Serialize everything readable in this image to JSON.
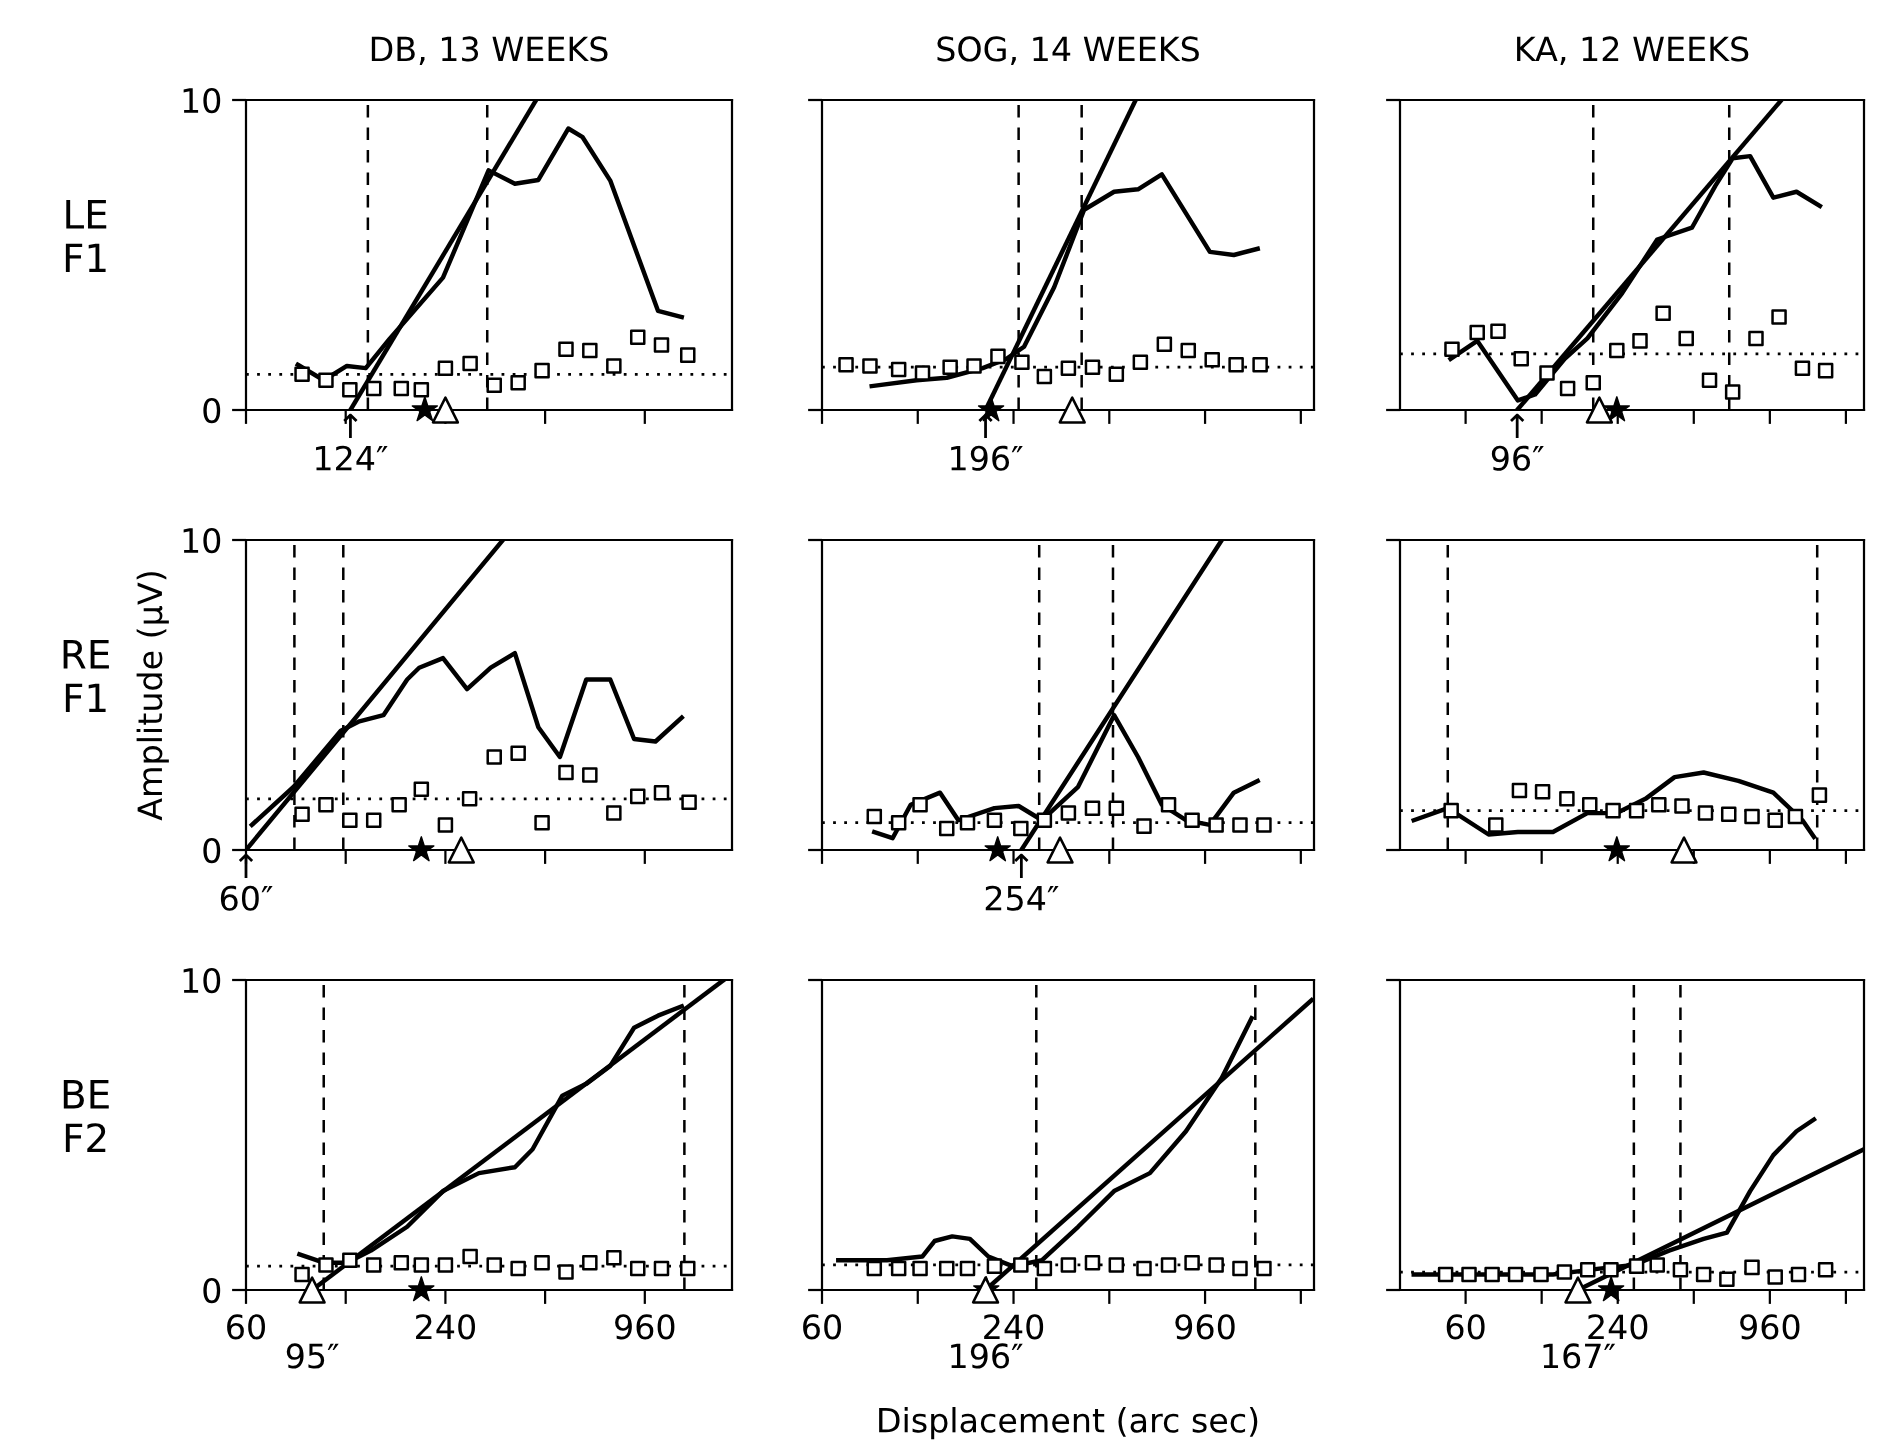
{
  "chart_data": [
    {
      "type": "line",
      "title": "DB, 13 WEEKS",
      "log": "x",
      "xlim": [
        60,
        1760
      ],
      "ylim": [
        0,
        10
      ],
      "yticks": [
        0,
        10
      ],
      "tick_labels": "y",
      "xticks": [
        60,
        {
          "value": 120,
          "label": null
        },
        240,
        {
          "value": 480,
          "label": null
        },
        960
      ],
      "annotations": [
        "LE\nF1",
        {
          "text": "↑\n124″",
          "x": 124,
          "y": 0
        }
      ],
      "ref_lines": [
        {
          "axis": "y",
          "value": 1.15,
          "line_style": "dotted"
        },
        {
          "axis": "x",
          "value": 140,
          "line_style": "dashed"
        },
        {
          "axis": "x",
          "value": 321,
          "line_style": "dashed"
        }
      ],
      "series": [
        {
          "color": "#000000",
          "x": [
            86,
            103,
            121,
            138,
            163,
            236,
            324,
            389,
            458,
            564,
            623,
            755,
            1052,
            1241
          ],
          "values": [
            1.46,
            0.96,
            1.42,
            1.35,
            2.3,
            4.27,
            7.73,
            7.3,
            7.42,
            9.08,
            8.8,
            7.4,
            3.2,
            3.0
          ]
        },
        {
          "type": "scatter",
          "marker": "square",
          "color": "#000000",
          "x": [
            88.6,
            104.6,
            123.5,
            145.8,
            176.6,
            203,
            240,
            285,
            337,
            398,
            470,
            555,
            655,
            774,
            914,
            1078,
            1294
          ],
          "values": [
            1.15,
            0.96,
            0.65,
            0.69,
            0.69,
            0.65,
            1.35,
            1.5,
            0.8,
            0.88,
            1.27,
            1.96,
            1.92,
            1.42,
            2.35,
            2.1,
            1.77
          ]
        },
        {
          "color": "#000000",
          "x": [
            124,
            451
          ],
          "values": [
            0,
            10
          ]
        },
        {
          "type": "scatter",
          "marker": "star",
          "color": "#000000",
          "x": [
            208
          ],
          "values": [
            0
          ]
        },
        {
          "type": "scatter",
          "marker": "triangle",
          "color": "#000000",
          "x": [
            240
          ],
          "values": [
            0
          ]
        }
      ]
    },
    {
      "type": "line",
      "title": "SOG, 14 WEEKS",
      "log": "x",
      "xlim": [
        60,
        2112
      ],
      "ylim": [
        0,
        10
      ],
      "yticks": [
        0,
        10
      ],
      "tick_labels": false,
      "xticks": [
        60,
        {
          "value": 120,
          "label": null
        },
        240,
        {
          "value": 480,
          "label": null
        },
        960,
        {
          "value": 1920,
          "label": null
        }
      ],
      "annotations": [
        {
          "text": "↑\n196″",
          "x": 196,
          "y": 0
        }
      ],
      "ref_lines": [
        {
          "axis": "y",
          "value": 1.38,
          "line_style": "dotted"
        },
        {
          "axis": "x",
          "value": 249,
          "line_style": "dashed"
        },
        {
          "axis": "x",
          "value": 393,
          "line_style": "dashed"
        }
      ],
      "series": [
        {
          "color": "#000000",
          "x": [
            86,
            119,
            148,
            192,
            228,
            259,
            322,
            400,
            497,
            591,
            702,
            994,
            1182,
            1405
          ],
          "values": [
            0.77,
            0.96,
            1.04,
            1.35,
            1.65,
            2.04,
            3.96,
            6.46,
            7.04,
            7.12,
            7.6,
            5.1,
            5.0,
            5.2
          ]
        },
        {
          "type": "scatter",
          "marker": "square",
          "color": "#000000",
          "x": [
            71.4,
            84.9,
            104.5,
            124.2,
            151.7,
            180.3,
            214.4,
            255,
            300,
            357,
            425,
            505,
            601,
            715,
            850,
            1011,
            1202,
            1430
          ],
          "values": [
            1.46,
            1.42,
            1.31,
            1.19,
            1.38,
            1.42,
            1.73,
            1.54,
            1.08,
            1.35,
            1.38,
            1.15,
            1.54,
            2.12,
            1.92,
            1.62,
            1.46,
            1.46
          ]
        },
        {
          "color": "#000000",
          "x": [
            196,
            581
          ],
          "values": [
            0,
            10
          ]
        },
        {
          "type": "scatter",
          "marker": "star",
          "color": "#000000",
          "x": [
            204
          ],
          "values": [
            0
          ]
        },
        {
          "type": "scatter",
          "marker": "triangle",
          "color": "#000000",
          "x": [
            367
          ],
          "values": [
            0
          ]
        }
      ]
    },
    {
      "type": "line",
      "title": "KA, 12 WEEKS",
      "log": "x",
      "xlim": [
        33,
        2264
      ],
      "ylim": [
        0,
        10
      ],
      "yticks": [
        0,
        10
      ],
      "tick_labels": false,
      "xticks": [
        60,
        {
          "value": 120,
          "label": null
        },
        240,
        {
          "value": 480,
          "label": null
        },
        960,
        {
          "value": 1920,
          "label": null
        }
      ],
      "annotations": [
        {
          "text": "↑\n96″",
          "x": 96,
          "y": 0
        }
      ],
      "ref_lines": [
        {
          "axis": "y",
          "value": 1.81,
          "line_style": "dotted"
        },
        {
          "axis": "x",
          "value": 192,
          "line_style": "dashed"
        },
        {
          "axis": "x",
          "value": 663,
          "line_style": "dashed"
        }
      ],
      "series": [
        {
          "color": "#000000",
          "x": [
            52.3,
            66.7,
            96.6,
            113,
            148,
            182,
            250,
            344,
            472,
            584,
            684,
            802,
            991,
            1224,
            1515
          ],
          "values": [
            1.65,
            2.23,
            0.31,
            0.5,
            1.65,
            2.31,
            3.77,
            5.5,
            5.88,
            7.23,
            8.12,
            8.19,
            6.85,
            7.04,
            6.58
          ]
        },
        {
          "type": "scatter",
          "marker": "square",
          "color": "#000000",
          "x": [
            53,
            66.7,
            80.6,
            99.6,
            126,
            152,
            192,
            238,
            294,
            363,
            448,
            554,
            684,
            846,
            1044,
            1292,
            1596
          ],
          "values": [
            1.96,
            2.5,
            2.54,
            1.65,
            1.19,
            0.69,
            0.88,
            1.92,
            2.23,
            3.12,
            2.31,
            0.96,
            0.58,
            2.31,
            3.0,
            1.35,
            1.27
          ]
        },
        {
          "color": "#000000",
          "x": [
            96,
            1067
          ],
          "values": [
            0,
            10
          ]
        },
        {
          "type": "scatter",
          "marker": "star",
          "color": "#000000",
          "x": [
            238
          ],
          "values": [
            0
          ]
        },
        {
          "type": "scatter",
          "marker": "triangle",
          "color": "#000000",
          "x": [
            203
          ],
          "values": [
            0
          ]
        }
      ]
    },
    {
      "type": "line",
      "ylabel": "Amplitude (μV)",
      "log": "x",
      "xlim": [
        60,
        1760
      ],
      "ylim": [
        0,
        10
      ],
      "yticks": [
        0,
        10
      ],
      "tick_labels": "y",
      "xticks": [
        60,
        {
          "value": 120,
          "label": null
        },
        240,
        {
          "value": 480,
          "label": null
        },
        960
      ],
      "annotations": [
        "RE\nF1",
        {
          "text": "↑\n60″",
          "x": 60,
          "y": 0
        }
      ],
      "ref_lines": [
        {
          "axis": "y",
          "value": 1.65,
          "line_style": "dotted"
        },
        {
          "axis": "x",
          "value": 84,
          "line_style": "dashed"
        },
        {
          "axis": "x",
          "value": 118,
          "line_style": "dashed"
        }
      ],
      "series": [
        {
          "color": "#000000",
          "x": [
            62.5,
            83.6,
            116,
            132,
            156,
            184,
            200,
            236,
            279,
            329,
            389,
            458,
            532,
            639,
            755,
            891,
            1034,
            1241
          ],
          "values": [
            0.81,
            2.04,
            3.85,
            4.15,
            4.35,
            5.5,
            5.88,
            6.19,
            5.19,
            5.88,
            6.35,
            3.96,
            3.0,
            5.5,
            5.5,
            3.58,
            3.5,
            4.27
          ]
        },
        {
          "type": "scatter",
          "marker": "square",
          "color": "#000000",
          "x": [
            88.6,
            104.6,
            123.5,
            145.8,
            174,
            203,
            240,
            284,
            337,
            398,
            470,
            555,
            655,
            774,
            914,
            1078,
            1306
          ],
          "values": [
            1.15,
            1.46,
            0.96,
            0.96,
            1.46,
            1.96,
            0.81,
            1.65,
            3.0,
            3.12,
            0.88,
            2.5,
            2.42,
            1.19,
            1.73,
            1.85,
            1.54
          ]
        },
        {
          "color": "#000000",
          "x": [
            60,
            358
          ],
          "values": [
            0,
            10
          ]
        },
        {
          "type": "scatter",
          "marker": "star",
          "color": "#000000",
          "x": [
            203
          ],
          "values": [
            0
          ]
        },
        {
          "type": "scatter",
          "marker": "triangle",
          "color": "#000000",
          "x": [
            268
          ],
          "values": [
            0
          ]
        }
      ]
    },
    {
      "type": "line",
      "log": "x",
      "xlim": [
        60,
        2112
      ],
      "ylim": [
        0,
        10
      ],
      "yticks": [
        0,
        10
      ],
      "tick_labels": false,
      "xticks": [
        60,
        {
          "value": 120,
          "label": null
        },
        240,
        {
          "value": 480,
          "label": null
        },
        960,
        {
          "value": 1920,
          "label": null
        }
      ],
      "annotations": [
        {
          "text": "↑\n254″",
          "x": 254,
          "y": 0
        }
      ],
      "ref_lines": [
        {
          "axis": "y",
          "value": 0.88,
          "line_style": "dotted"
        },
        {
          "axis": "x",
          "value": 289,
          "line_style": "dashed"
        },
        {
          "axis": "x",
          "value": 493,
          "line_style": "dashed"
        }
      ],
      "series": [
        {
          "color": "#000000",
          "x": [
            87.6,
            100,
            114,
            141,
            161,
            209,
            249,
            295,
            383,
            497,
            591,
            702,
            836,
            994,
            1182,
            1405
          ],
          "values": [
            0.58,
            0.38,
            1.46,
            1.85,
            0.96,
            1.35,
            1.42,
            0.96,
            2.04,
            4.35,
            3.0,
            1.46,
            0.96,
            0.81,
            1.85,
            2.23
          ]
        },
        {
          "type": "scatter",
          "marker": "square",
          "color": "#000000",
          "x": [
            87.6,
            104.5,
            122,
            148,
            172,
            209,
            253,
            300,
            357,
            425,
            505,
            617,
            737,
            874,
            1040,
            1236,
            1470
          ],
          "values": [
            1.08,
            0.88,
            1.46,
            0.69,
            0.88,
            0.96,
            0.69,
            0.96,
            1.19,
            1.35,
            1.35,
            0.77,
            1.46,
            0.96,
            0.81,
            0.81,
            0.81
          ]
        },
        {
          "color": "#000000",
          "x": [
            254,
            1084
          ],
          "values": [
            0,
            10
          ]
        },
        {
          "type": "scatter",
          "marker": "star",
          "color": "#000000",
          "x": [
            214
          ],
          "values": [
            0
          ]
        },
        {
          "type": "scatter",
          "marker": "triangle",
          "color": "#000000",
          "x": [
            336
          ],
          "values": [
            0
          ]
        }
      ]
    },
    {
      "type": "line",
      "log": "x",
      "xlim": [
        33,
        2264
      ],
      "ylim": [
        0,
        10
      ],
      "yticks": [
        0,
        10
      ],
      "tick_labels": false,
      "xticks": [
        60,
        {
          "value": 120,
          "label": null
        },
        240,
        {
          "value": 480,
          "label": null
        },
        960,
        {
          "value": 1920,
          "label": null
        }
      ],
      "ref_lines": [
        {
          "axis": "y",
          "value": 1.27,
          "line_style": "dotted"
        },
        {
          "axis": "x",
          "value": 51,
          "line_style": "dashed"
        },
        {
          "axis": "x",
          "value": 1478,
          "line_style": "dashed"
        }
      ],
      "series": [
        {
          "color": "#000000",
          "x": [
            37.4,
            51,
            74,
            96.6,
            133,
            182,
            238,
            309,
            403,
            525,
            721,
            991,
            1292,
            1435
          ],
          "values": [
            0.96,
            1.35,
            0.5,
            0.58,
            0.58,
            1.19,
            1.19,
            1.65,
            2.35,
            2.5,
            2.23,
            1.85,
            0.96,
            0.42
          ]
        },
        {
          "type": "scatter",
          "marker": "square",
          "color": "#000000",
          "x": [
            52.6,
            79,
            98,
            121,
            151,
            186,
            230,
            285,
            349,
            431,
            534,
            660,
            816,
            1008,
            1212,
            1508
          ],
          "values": [
            1.27,
            0.81,
            1.92,
            1.88,
            1.65,
            1.46,
            1.27,
            1.27,
            1.46,
            1.42,
            1.19,
            1.15,
            1.08,
            0.96,
            1.08,
            1.77
          ]
        },
        {
          "type": "scatter",
          "marker": "star",
          "color": "#000000",
          "x": [
            238
          ],
          "values": [
            0
          ]
        },
        {
          "type": "scatter",
          "marker": "triangle",
          "color": "#000000",
          "x": [
            439
          ],
          "values": [
            0
          ]
        }
      ]
    },
    {
      "type": "line",
      "log": "x",
      "xlim": [
        60,
        1760
      ],
      "ylim": [
        0,
        10
      ],
      "yticks": [
        0,
        10
      ],
      "xticks": [
        60,
        {
          "value": 120,
          "label": null
        },
        240,
        {
          "value": 480,
          "label": null
        },
        960
      ],
      "annotations": [
        "BE\nF2",
        {
          "text": "95″",
          "x": 95,
          "y": 0
        }
      ],
      "ref_lines": [
        {
          "axis": "y",
          "value": 0.77,
          "line_style": "dotted"
        },
        {
          "axis": "x",
          "value": 103,
          "line_style": "dashed"
        },
        {
          "axis": "x",
          "value": 1264,
          "line_style": "dashed"
        }
      ],
      "series": [
        {
          "color": "#000000",
          "x": [
            87,
            103,
            121,
            143,
            184,
            236,
            303,
            389,
            440,
            541,
            639,
            755,
            891,
            1052,
            1241
          ],
          "values": [
            1.15,
            0.88,
            0.88,
            1.27,
            2.04,
            3.19,
            3.77,
            3.96,
            4.54,
            6.27,
            6.65,
            7.23,
            8.46,
            8.85,
            9.15
          ]
        },
        {
          "type": "scatter",
          "marker": "square",
          "color": "#000000",
          "x": [
            88.6,
            104.6,
            123.5,
            145.8,
            176.6,
            203,
            240,
            285,
            337,
            398,
            470,
            555,
            655,
            774,
            914,
            1078,
            1294
          ],
          "values": [
            0.5,
            0.81,
            0.96,
            0.81,
            0.88,
            0.81,
            0.81,
            1.08,
            0.81,
            0.69,
            0.88,
            0.58,
            0.88,
            1.04,
            0.69,
            0.69,
            0.69
          ]
        },
        {
          "color": "#000000",
          "x": [
            95,
            1661
          ],
          "values": [
            0,
            10
          ]
        },
        {
          "type": "scatter",
          "marker": "star",
          "color": "#000000",
          "x": [
            203
          ],
          "values": [
            0
          ]
        },
        {
          "type": "scatter",
          "marker": "triangle",
          "color": "#000000",
          "x": [
            95
          ],
          "values": [
            0
          ]
        }
      ]
    },
    {
      "type": "line",
      "xlabel": "Displacement (arc sec)",
      "log": "x",
      "xlim": [
        60,
        2112
      ],
      "ylim": [
        0,
        10
      ],
      "yticks": [
        0,
        10
      ],
      "tick_labels": "x",
      "xticks": [
        60,
        {
          "value": 120,
          "label": null
        },
        240,
        {
          "value": 480,
          "label": null
        },
        960,
        {
          "value": 1920,
          "label": null
        }
      ],
      "annotations": [
        {
          "text": "196″",
          "x": 196,
          "y": 0
        }
      ],
      "ref_lines": [
        {
          "axis": "y",
          "value": 0.81,
          "line_style": "dotted"
        },
        {
          "axis": "x",
          "value": 283,
          "line_style": "dashed"
        },
        {
          "axis": "x",
          "value": 1381,
          "line_style": "dashed"
        }
      ],
      "series": [
        {
          "color": "#000000",
          "x": [
            67.5,
            96,
            124,
            135.5,
            154,
            175,
            200,
            238,
            295,
            383,
            497,
            644,
            836,
            1084,
            1345
          ],
          "values": [
            0.96,
            0.96,
            1.08,
            1.58,
            1.73,
            1.65,
            1.08,
            0.77,
            0.96,
            2.04,
            3.19,
            3.77,
            5.12,
            6.85,
            8.77
          ]
        },
        {
          "type": "scatter",
          "marker": "square",
          "color": "#000000",
          "x": [
            87.6,
            104.5,
            122,
            148,
            172,
            209,
            253,
            300,
            357,
            425,
            505,
            617,
            737,
            874,
            1040,
            1236,
            1470
          ],
          "values": [
            0.69,
            0.69,
            0.69,
            0.69,
            0.69,
            0.77,
            0.81,
            0.69,
            0.81,
            0.88,
            0.81,
            0.69,
            0.81,
            0.88,
            0.81,
            0.69,
            0.69
          ]
        },
        {
          "color": "#000000",
          "x": [
            196,
            2076
          ],
          "values": [
            0,
            9.35
          ]
        },
        {
          "type": "scatter",
          "marker": "star",
          "color": "#000000",
          "x": [
            197
          ],
          "values": [
            0
          ]
        },
        {
          "type": "scatter",
          "marker": "triangle",
          "color": "#000000",
          "x": [
            196
          ],
          "values": [
            0
          ]
        }
      ]
    },
    {
      "type": "line",
      "log": "x",
      "xlim": [
        33,
        2264
      ],
      "ylim": [
        0,
        10
      ],
      "yticks": [
        0,
        10
      ],
      "tick_labels": "x",
      "xticks": [
        60,
        {
          "value": 120,
          "label": null
        },
        240,
        {
          "value": 480,
          "label": null
        },
        960,
        {
          "value": 1920,
          "label": null
        }
      ],
      "annotations": [
        {
          "text": "167″",
          "x": 167,
          "y": 0
        }
      ],
      "ref_lines": [
        {
          "axis": "y",
          "value": 0.58,
          "line_style": "dotted"
        },
        {
          "axis": "x",
          "value": 278,
          "line_style": "dashed"
        },
        {
          "axis": "x",
          "value": 425,
          "line_style": "dashed"
        }
      ],
      "series": [
        {
          "color": "#000000",
          "x": [
            37.4,
            78,
            133,
            203,
            278,
            383,
            525,
            649,
            802,
            991,
            1224,
            1435
          ],
          "values": [
            0.5,
            0.5,
            0.5,
            0.69,
            0.81,
            1.27,
            1.65,
            1.85,
            3.19,
            4.35,
            5.12,
            5.5
          ]
        },
        {
          "type": "scatter",
          "marker": "square",
          "color": "#000000",
          "x": [
            50,
            61.9,
            76.4,
            94.6,
            119.3,
            147.6,
            182.6,
            225.6,
            285,
            344,
            425,
            525,
            649,
            816,
            1008,
            1246,
            1596
          ],
          "values": [
            0.5,
            0.5,
            0.5,
            0.5,
            0.5,
            0.58,
            0.65,
            0.65,
            0.77,
            0.81,
            0.65,
            0.5,
            0.35,
            0.73,
            0.42,
            0.5,
            0.65
          ]
        },
        {
          "color": "#000000",
          "x": [
            167,
            2264
          ],
          "values": [
            0,
            4.54
          ]
        },
        {
          "type": "scatter",
          "marker": "star",
          "color": "#000000",
          "x": [
            226
          ],
          "values": [
            0
          ]
        },
        {
          "type": "scatter",
          "marker": "triangle",
          "color": "#000000",
          "x": [
            167
          ],
          "values": [
            0
          ]
        }
      ]
    }
  ]
}
